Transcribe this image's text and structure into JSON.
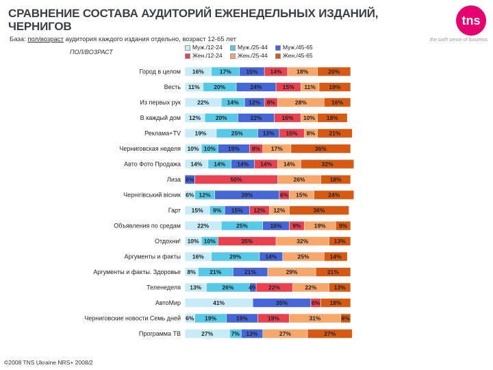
{
  "page": {
    "title_line1": "СРАВНЕНИЕ СОСТАВА АУДИТОРИЙ ЕЖЕНЕДЕЛЬНЫХ ИЗДАНИЙ,",
    "title_line2": "ЧЕРНИГОВ",
    "logo": "tns",
    "tagline": "the sixth sense of business",
    "base_prefix": "База: ",
    "base_underlined": "пол/возраст",
    "base_suffix": " аудитория каждого издания отдельно, возраст 12-65 лет",
    "sex_age_label": "ПОЛ/ВОЗРАСТ",
    "copyright": "©2008 TNS Ukraine NRS+ 2008/2"
  },
  "chart_data": {
    "type": "bar",
    "orientation": "horizontal",
    "stacked": "100%",
    "categories": [
      "Город в целом",
      "Весть",
      "Из первых рук",
      "В каждый дом",
      "Реклама+TV",
      "Черниговская неделя",
      "Авто Фото Продажа",
      "Лиза",
      "Чернігівський вісник",
      "Гарт",
      "Объявления по средам",
      "Отдохни!",
      "Аргументы и факты",
      "Аргументы и факты. Здоровье",
      "Теленеделя",
      "АвтоМир",
      "Черниговские новости Семь дней",
      "Программа ТВ"
    ],
    "series": [
      {
        "name": "Муж./12-24",
        "color": "#c5ecf7",
        "values": [
          16,
          11,
          22,
          12,
          19,
          10,
          14,
          0,
          6,
          15,
          22,
          10,
          16,
          8,
          13,
          41,
          6,
          27
        ]
      },
      {
        "name": "Муж./25-44",
        "color": "#56c8e8",
        "values": [
          17,
          20,
          14,
          20,
          25,
          10,
          14,
          0,
          12,
          9,
          25,
          10,
          29,
          21,
          26,
          0,
          19,
          7
        ]
      },
      {
        "name": "Муж./45-65",
        "color": "#4466d6",
        "values": [
          15,
          24,
          12,
          22,
          13,
          19,
          14,
          6,
          39,
          15,
          16,
          0,
          14,
          21,
          4,
          35,
          19,
          13
        ]
      },
      {
        "name": "Жен./12-24",
        "color": "#e8414f",
        "values": [
          14,
          15,
          8,
          16,
          15,
          8,
          14,
          50,
          6,
          12,
          9,
          35,
          0,
          0,
          22,
          6,
          19,
          0
        ]
      },
      {
        "name": "Жен./25-44",
        "color": "#f7a76a",
        "values": [
          18,
          11,
          28,
          10,
          8,
          17,
          14,
          26,
          15,
          12,
          19,
          32,
          25,
          29,
          22,
          0,
          31,
          27
        ]
      },
      {
        "name": "Жен./45-65",
        "color": "#d85a12",
        "values": [
          20,
          19,
          16,
          18,
          21,
          36,
          32,
          18,
          24,
          36,
          9,
          13,
          14,
          21,
          13,
          18,
          6,
          27
        ]
      }
    ],
    "value_suffix": "%",
    "xlim": [
      0,
      100
    ],
    "legend_position": "top"
  }
}
